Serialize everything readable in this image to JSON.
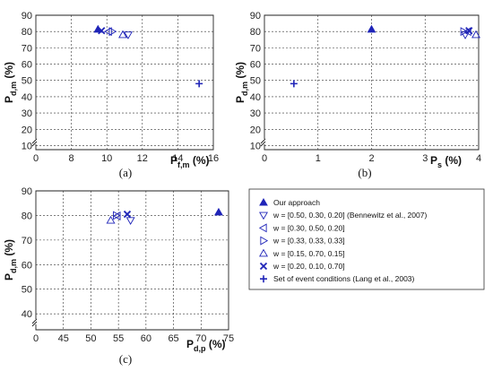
{
  "colors": {
    "marker": "#1f24b8",
    "axis": "#222222",
    "grid": "#333333"
  },
  "legend": [
    {
      "marker": "triangle-up-filled",
      "label": "Our approach"
    },
    {
      "marker": "triangle-down",
      "label": "w = [0.50, 0.30, 0.20] (Bennewitz et al., 2007)"
    },
    {
      "marker": "triangle-left",
      "label": "w = [0.30, 0.50, 0.20]"
    },
    {
      "marker": "triangle-right",
      "label": "w = [0.33, 0.33, 0.33]"
    },
    {
      "marker": "triangle-up",
      "label": "w = [0.15, 0.70, 0.15]"
    },
    {
      "marker": "x",
      "label": "w = [0.20, 0.10, 0.70]"
    },
    {
      "marker": "plus",
      "label": "Set of event conditions (Lang et al., 2003)"
    }
  ],
  "chart_data": [
    {
      "type": "scatter",
      "panel_label": "(a)",
      "ylabel": {
        "main": "P",
        "sub": "d,m",
        "unit": " (%)"
      },
      "xlabel": {
        "main": "P",
        "sub": "f,m",
        "unit": " (%)"
      },
      "xlim": [
        6,
        16
      ],
      "ylim": [
        0,
        90
      ],
      "y_axis_break": true,
      "xticks": [
        "0",
        "8",
        "10",
        "12",
        "14",
        "16"
      ],
      "yticks": [
        "10",
        "20",
        "30",
        "40",
        "50",
        "60",
        "70",
        "80",
        "90"
      ],
      "grid": true,
      "points": [
        {
          "series": "Our approach",
          "marker": "triangle-up-filled",
          "x": 9.5,
          "y": 81.3
        },
        {
          "series": "w = [0.50, 0.30, 0.20] (Bennewitz et al., 2007)",
          "marker": "triangle-down",
          "x": 11.2,
          "y": 78.0
        },
        {
          "series": "w = [0.30, 0.50, 0.20]",
          "marker": "triangle-left",
          "x": 10.1,
          "y": 80.0
        },
        {
          "series": "w = [0.33, 0.33, 0.33]",
          "marker": "triangle-right",
          "x": 10.3,
          "y": 80.0
        },
        {
          "series": "w = [0.15, 0.70, 0.15]",
          "marker": "triangle-up",
          "x": 10.9,
          "y": 78.0
        },
        {
          "series": "w = [0.20, 0.10, 0.70]",
          "marker": "x",
          "x": 9.7,
          "y": 80.5
        },
        {
          "series": "Set of event conditions (Lang et al., 2003)",
          "marker": "plus",
          "x": 15.2,
          "y": 48.0
        }
      ]
    },
    {
      "type": "scatter",
      "panel_label": "(b)",
      "ylabel": {
        "main": "P",
        "sub": "d,m",
        "unit": " (%)"
      },
      "xlabel": {
        "main": "P",
        "sub": "s",
        "unit": " (%)"
      },
      "xlim": [
        0,
        4
      ],
      "ylim": [
        0,
        90
      ],
      "y_axis_break": true,
      "xticks": [
        "0",
        "1",
        "2",
        "3",
        "4"
      ],
      "yticks": [
        "10",
        "20",
        "30",
        "40",
        "50",
        "60",
        "70",
        "80",
        "90"
      ],
      "grid": true,
      "points": [
        {
          "series": "Our approach",
          "marker": "triangle-up-filled",
          "x": 2.0,
          "y": 81.3
        },
        {
          "series": "w = [0.50, 0.30, 0.20] (Bennewitz et al., 2007)",
          "marker": "triangle-down",
          "x": 3.75,
          "y": 78.0
        },
        {
          "series": "w = [0.30, 0.50, 0.20]",
          "marker": "triangle-left",
          "x": 3.8,
          "y": 80.0
        },
        {
          "series": "w = [0.33, 0.33, 0.33]",
          "marker": "triangle-right",
          "x": 3.72,
          "y": 80.0
        },
        {
          "series": "w = [0.15, 0.70, 0.15]",
          "marker": "triangle-up",
          "x": 3.95,
          "y": 78.0
        },
        {
          "series": "w = [0.20, 0.10, 0.70]",
          "marker": "x",
          "x": 3.82,
          "y": 80.5
        },
        {
          "series": "Set of event conditions (Lang et al., 2003)",
          "marker": "plus",
          "x": 0.55,
          "y": 48.0
        }
      ]
    },
    {
      "type": "scatter",
      "panel_label": "(c)",
      "ylabel": {
        "main": "P",
        "sub": "d,m",
        "unit": " (%)"
      },
      "xlabel": {
        "main": "P",
        "sub": "d,p",
        "unit": " (%)"
      },
      "xlim": [
        40,
        75
      ],
      "ylim": [
        0,
        90
      ],
      "y_axis_break": true,
      "xticks": [
        "0",
        "45",
        "50",
        "55",
        "60",
        "65",
        "70",
        "75"
      ],
      "yticks": [
        "40",
        "50",
        "60",
        "70",
        "80",
        "90"
      ],
      "grid": true,
      "points": [
        {
          "series": "Our approach",
          "marker": "triangle-up-filled",
          "x": 73.2,
          "y": 81.3
        },
        {
          "series": "w = [0.50, 0.30, 0.20] (Bennewitz et al., 2007)",
          "marker": "triangle-down",
          "x": 57.2,
          "y": 78.0
        },
        {
          "series": "w = [0.30, 0.50, 0.20]",
          "marker": "triangle-left",
          "x": 54.8,
          "y": 79.8
        },
        {
          "series": "w = [0.33, 0.33, 0.33]",
          "marker": "triangle-right",
          "x": 54.6,
          "y": 80.0
        },
        {
          "series": "w = [0.15, 0.70, 0.15]",
          "marker": "triangle-up",
          "x": 53.6,
          "y": 78.0
        },
        {
          "series": "w = [0.20, 0.10, 0.70]",
          "marker": "x",
          "x": 56.6,
          "y": 80.5
        }
      ]
    }
  ]
}
